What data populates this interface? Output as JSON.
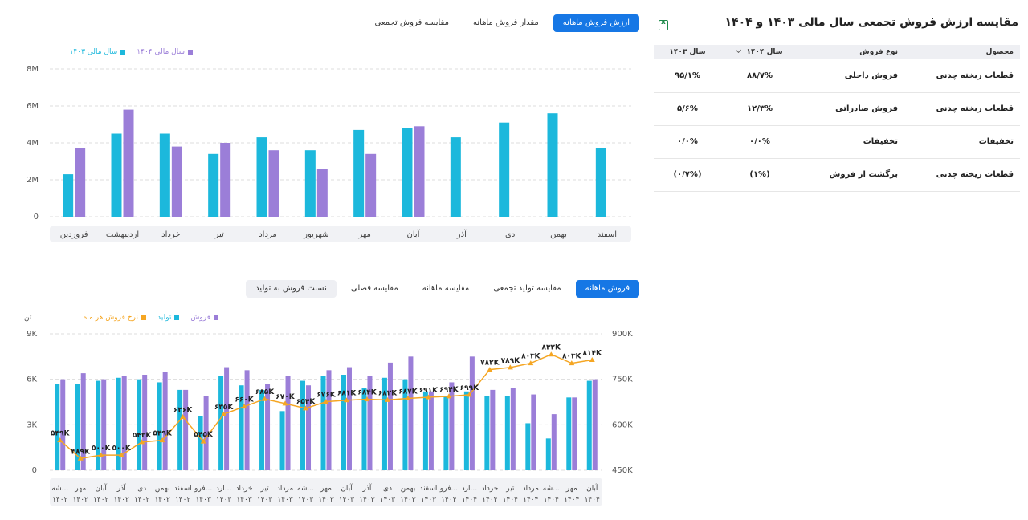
{
  "top_tabs": [
    {
      "label": "ارزش فروش ماهانه",
      "active": true
    },
    {
      "label": "مقدار فروش ماهانه",
      "active": false
    },
    {
      "label": "مقایسه فروش تجمعی",
      "active": false
    }
  ],
  "bottom_tabs": [
    {
      "label": "فروش ماهانه",
      "active": true
    },
    {
      "label": "مقایسه تولید تجمعی",
      "active": false
    },
    {
      "label": "مقایسه ماهانه",
      "active": false
    },
    {
      "label": "مقایسه فصلی",
      "active": false
    },
    {
      "label": "نسبت فروش به تولید",
      "active": false
    }
  ],
  "table": {
    "title": "مقایسه ارزش فروش تجمعی سال مالی ۱۴۰۳ و ۱۴۰۴",
    "headers": {
      "product": "محصول",
      "sale_type": "نوع فروش",
      "y1404": "سال ۱۴۰۴",
      "y1403": "سال ۱۴۰۳"
    },
    "rows": [
      {
        "product": "قطعات ریخته چدنی",
        "sale_type": "فروش داخلی",
        "y1404": "۸۸/۷%",
        "y1403": "۹۵/۱%"
      },
      {
        "product": "قطعات ریخته چدنی",
        "sale_type": "فروش صادراتی",
        "y1404": "۱۲/۳%",
        "y1403": "۵/۶%"
      },
      {
        "product": "تخفیفات",
        "sale_type": "تخفیفات",
        "y1404": "۰/۰%",
        "y1403": "۰/۰%"
      },
      {
        "product": "قطعات ریخته چدنی",
        "sale_type": "برگشت از فروش",
        "y1404": "(۱%)",
        "y1403": "(۰/۷%)"
      }
    ]
  },
  "colors": {
    "cyan": "#1cb8dc",
    "purple": "#9b7ed8",
    "orange": "#f5a623",
    "accent": "#1677e5"
  },
  "chart_data": [
    {
      "type": "bar",
      "legend": [
        "سال مالی ۱۴۰۴",
        "سال مالی ۱۴۰۳"
      ],
      "yticks": [
        "8M",
        "6M",
        "4M",
        "2M",
        "0"
      ],
      "ylim": [
        0,
        8
      ],
      "categories": [
        "فروردین",
        "اردیبهشت",
        "خرداد",
        "تیر",
        "مرداد",
        "شهریور",
        "مهر",
        "آبان",
        "آذر",
        "دی",
        "بهمن",
        "اسفند"
      ],
      "series": [
        {
          "name": "سال مالی ۱۴۰۳",
          "values": [
            2.3,
            4.5,
            4.5,
            3.4,
            4.3,
            3.6,
            4.7,
            4.8,
            4.3,
            5.1,
            5.6,
            3.7
          ]
        },
        {
          "name": "سال مالی ۱۴۰۴",
          "values": [
            3.7,
            5.8,
            3.8,
            4.0,
            3.6,
            2.6,
            3.4,
            4.9,
            null,
            null,
            null,
            null
          ]
        }
      ]
    },
    {
      "type": "bar",
      "y_unit": "تن",
      "legend": [
        "فروش",
        "تولید",
        "نرخ فروش هر ماه"
      ],
      "yticks_left": [
        "9K",
        "6K",
        "3K",
        "0"
      ],
      "yticks_right": [
        "900K",
        "750K",
        "600K",
        "450K"
      ],
      "ylim_left": [
        0,
        9
      ],
      "ylim_right": [
        450,
        900
      ],
      "categories": [
        {
          "month": "شه...",
          "year": "۱۴۰۲"
        },
        {
          "month": "مهر",
          "year": "۱۴۰۲"
        },
        {
          "month": "آبان",
          "year": "۱۴۰۲"
        },
        {
          "month": "آذر",
          "year": "۱۴۰۲"
        },
        {
          "month": "دی",
          "year": "۱۴۰۲"
        },
        {
          "month": "بهمن",
          "year": "۱۴۰۲"
        },
        {
          "month": "اسفند",
          "year": "۱۴۰۲"
        },
        {
          "month": "فرو...",
          "year": "۱۴۰۳"
        },
        {
          "month": "ارد...",
          "year": "۱۴۰۳"
        },
        {
          "month": "خرداد",
          "year": "۱۴۰۳"
        },
        {
          "month": "تیر",
          "year": "۱۴۰۳"
        },
        {
          "month": "مرداد",
          "year": "۱۴۰۳"
        },
        {
          "month": "شه...",
          "year": "۱۴۰۳"
        },
        {
          "month": "مهر",
          "year": "۱۴۰۳"
        },
        {
          "month": "آبان",
          "year": "۱۴۰۳"
        },
        {
          "month": "آذر",
          "year": "۱۴۰۳"
        },
        {
          "month": "دی",
          "year": "۱۴۰۳"
        },
        {
          "month": "بهمن",
          "year": "۱۴۰۳"
        },
        {
          "month": "اسفند",
          "year": "۱۴۰۳"
        },
        {
          "month": "فرو...",
          "year": "۱۴۰۴"
        },
        {
          "month": "ارد...",
          "year": "۱۴۰۴"
        },
        {
          "month": "خرداد",
          "year": "۱۴۰۴"
        },
        {
          "month": "تیر",
          "year": "۱۴۰۴"
        },
        {
          "month": "مرداد",
          "year": "۱۴۰۴"
        },
        {
          "month": "شه...",
          "year": "۱۴۰۴"
        },
        {
          "month": "مهر",
          "year": "۱۴۰۴"
        },
        {
          "month": "آبان",
          "year": "۱۴۰۴"
        }
      ],
      "series": [
        {
          "name": "تولید",
          "values": [
            5.7,
            5.7,
            5.9,
            6.1,
            6.0,
            5.8,
            5.3,
            3.6,
            6.2,
            5.6,
            5.3,
            3.9,
            5.9,
            6.2,
            6.3,
            5.4,
            6.1,
            6.0,
            5.2,
            4.9,
            5.2,
            4.9,
            4.9,
            3.1,
            2.1,
            4.8,
            5.9
          ]
        },
        {
          "name": "فروش",
          "values": [
            6.0,
            6.4,
            6.0,
            6.2,
            6.3,
            6.5,
            5.3,
            4.9,
            6.8,
            6.6,
            5.7,
            6.2,
            5.6,
            6.6,
            6.8,
            6.2,
            7.1,
            7.5,
            5.2,
            5.8,
            7.5,
            5.3,
            5.4,
            5.0,
            3.7,
            4.8,
            6.0
          ]
        },
        {
          "name": "نرخ فروش هر ماه",
          "values": [
            549,
            489,
            500,
            500,
            543,
            549,
            626,
            545,
            635,
            660,
            685,
            670,
            654,
            676,
            681,
            684,
            682,
            687,
            691,
            694,
            699,
            782,
            789,
            803,
            832,
            803,
            814
          ]
        }
      ],
      "point_labels": [
        "۵۴۹K",
        "۴۸۹K",
        "۵۰۰K",
        "۵۰۰K",
        "۵۴۳K",
        "۵۴۹K",
        "۶۲۶K",
        "۵۴۵K",
        "۶۳۵K",
        "۶۶۰K",
        "۶۸۵K",
        "۶۷۰K",
        "۶۵۴K",
        "۶۷۶K",
        "۶۸۱K",
        "۶۸۴K",
        "۶۸۲K",
        "۶۸۷K",
        "۶۹۱K",
        "۶۹۴K",
        "۶۹۹K",
        "۷۸۲K",
        "۷۸۹K",
        "۸۰۳K",
        "۸۳۲K",
        "۸۰۳K",
        "۸۱۴K"
      ]
    }
  ]
}
